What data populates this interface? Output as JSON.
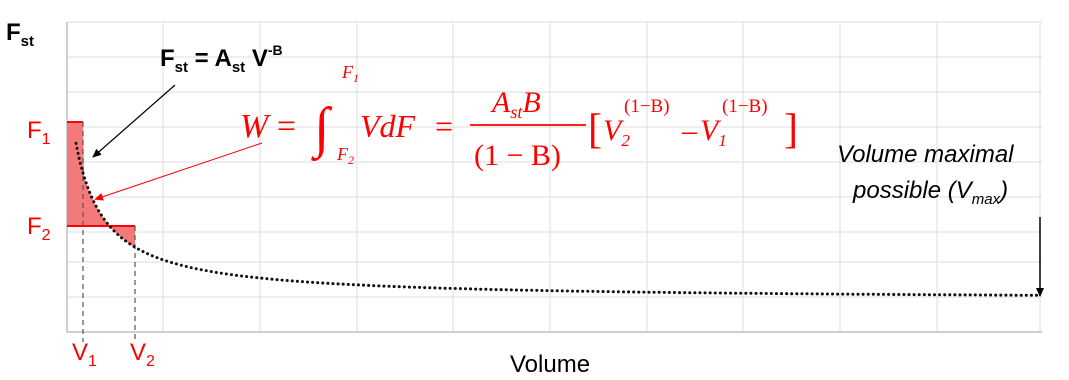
{
  "colors": {
    "accent": "#ff0000",
    "fill": "#f47a7a",
    "curve": "#111111",
    "grid": "#d9d9d9",
    "text": "#000000"
  },
  "axes": {
    "y_label": "F",
    "y_label_sub": "st",
    "x_label": "Volume"
  },
  "curve_formula": {
    "f": "F",
    "f_sub": "st",
    "equals": " = ",
    "a": "A",
    "a_sub": "st",
    "v": " V",
    "exp": "-B"
  },
  "work_formula": {
    "w": "W",
    "eq": " = ",
    "int": "∫",
    "upper": "F",
    "upper_sub": "1",
    "lower": "F",
    "lower_sub": "2",
    "integrand": "VdF",
    "eq2": "=",
    "num": "A",
    "num_sub": "st",
    "num_tail": "B",
    "den": "(1 − B)",
    "lbr": "[",
    "v2": "V",
    "v2_sub": "2",
    "v2_exp": "(1−B)",
    "minus": "–",
    "v1": "V",
    "v1_sub": "1",
    "v1_exp": "(1−B)",
    "rbr": "]"
  },
  "force_labels": [
    {
      "main": "F",
      "sub": "1"
    },
    {
      "main": "F",
      "sub": "2"
    }
  ],
  "volume_labels": [
    {
      "main": "V",
      "sub": "1"
    },
    {
      "main": "V",
      "sub": "2"
    }
  ],
  "vmax_annotation": {
    "line1": "Volume maximal",
    "line2_prefix": "possible (V",
    "line2_sub": "max",
    "line2_suffix": ")"
  }
}
